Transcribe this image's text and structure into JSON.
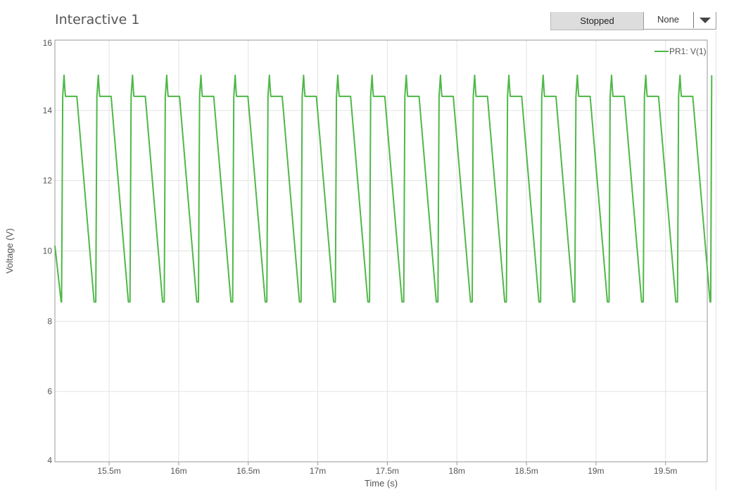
{
  "window": {
    "title": "Interactive 1"
  },
  "controls": {
    "run_state_label": "Stopped",
    "select_value": "None"
  },
  "colors": {
    "series": "#4fb848",
    "grid": "#e3e3e3",
    "axis": "#999999",
    "text": "#555555"
  },
  "chart_data": {
    "type": "line",
    "title": "",
    "xlabel": "Time (s)",
    "ylabel": "Voltage (V)",
    "xlim": [
      0.01511,
      0.0198
    ],
    "ylim": [
      4,
      16
    ],
    "grid": true,
    "legend_position": "top-right",
    "x_ticks": [
      {
        "value": 0.0155,
        "label": "15.5m"
      },
      {
        "value": 0.016,
        "label": "16m"
      },
      {
        "value": 0.0165,
        "label": "16.5m"
      },
      {
        "value": 0.017,
        "label": "17m"
      },
      {
        "value": 0.0175,
        "label": "17.5m"
      },
      {
        "value": 0.018,
        "label": "18m"
      },
      {
        "value": 0.0185,
        "label": "18.5m"
      },
      {
        "value": 0.019,
        "label": "19m"
      },
      {
        "value": 0.0195,
        "label": "19.5m"
      }
    ],
    "y_ticks": [
      {
        "value": 4,
        "label": "4"
      },
      {
        "value": 6,
        "label": "6"
      },
      {
        "value": 8,
        "label": "8"
      },
      {
        "value": 10,
        "label": "10"
      },
      {
        "value": 12,
        "label": "12"
      },
      {
        "value": 14,
        "label": "14"
      },
      {
        "value": 16,
        "label": "16"
      }
    ],
    "series": [
      {
        "name": "PR1: V(1)",
        "x": [
          0.01511,
          0.015155,
          0.015158,
          0.015166,
          0.015176,
          0.015182,
          0.015186,
          0.015196,
          0.015268,
          0.015392,
          0.015404,
          0.015412,
          0.015422,
          0.015428,
          0.015432,
          0.015442,
          0.015514,
          0.015638,
          0.01565,
          0.015658,
          0.015668,
          0.015674,
          0.015678,
          0.015688,
          0.01576,
          0.015884,
          0.015896,
          0.015904,
          0.015914,
          0.01592,
          0.015924,
          0.015934,
          0.016006,
          0.01613,
          0.016142,
          0.01615,
          0.01616,
          0.016166,
          0.01617,
          0.01618,
          0.016252,
          0.016376,
          0.016388,
          0.016396,
          0.016406,
          0.016412,
          0.016416,
          0.016426,
          0.016498,
          0.016622,
          0.016634,
          0.016642,
          0.016652,
          0.016658,
          0.016662,
          0.016672,
          0.016744,
          0.016868,
          0.01688,
          0.016888,
          0.016898,
          0.016904,
          0.016908,
          0.016918,
          0.01699,
          0.017114,
          0.017126,
          0.017134,
          0.017144,
          0.01715,
          0.017154,
          0.017164,
          0.017236,
          0.01736,
          0.017372,
          0.01738,
          0.01739,
          0.017396,
          0.0174,
          0.01741,
          0.017482,
          0.017606,
          0.017618,
          0.017626,
          0.017636,
          0.017642,
          0.017646,
          0.017656,
          0.017728,
          0.017852,
          0.017864,
          0.017872,
          0.017882,
          0.017888,
          0.017892,
          0.017902,
          0.017974,
          0.018098,
          0.01811,
          0.018118,
          0.018128,
          0.018134,
          0.018138,
          0.018148,
          0.01822,
          0.018344,
          0.018356,
          0.018364,
          0.018374,
          0.01838,
          0.018384,
          0.018394,
          0.018466,
          0.01859,
          0.018602,
          0.01861,
          0.01862,
          0.018626,
          0.01863,
          0.01864,
          0.018712,
          0.018836,
          0.018848,
          0.018856,
          0.018866,
          0.018872,
          0.018876,
          0.018886,
          0.018958,
          0.019082,
          0.019094,
          0.019102,
          0.019112,
          0.019118,
          0.019122,
          0.019132,
          0.019204,
          0.019328,
          0.01934,
          0.019348,
          0.019358,
          0.019364,
          0.019368,
          0.019378,
          0.01945,
          0.019574,
          0.019586,
          0.019594,
          0.019604,
          0.01961,
          0.019614,
          0.019624,
          0.019696,
          0.01982,
          0.019825,
          0.019832
        ],
        "y": [
          10.15,
          8.55,
          8.55,
          14.4,
          15.0,
          14.6,
          14.4,
          14.4,
          14.4,
          8.55,
          8.55,
          14.4,
          15.0,
          14.6,
          14.4,
          14.4,
          14.4,
          8.55,
          8.55,
          14.4,
          15.0,
          14.6,
          14.4,
          14.4,
          14.4,
          8.55,
          8.55,
          14.4,
          15.0,
          14.6,
          14.4,
          14.4,
          14.4,
          8.55,
          8.55,
          14.4,
          15.0,
          14.6,
          14.4,
          14.4,
          14.4,
          8.55,
          8.55,
          14.4,
          15.0,
          14.6,
          14.4,
          14.4,
          14.4,
          8.55,
          8.55,
          14.4,
          15.0,
          14.6,
          14.4,
          14.4,
          14.4,
          8.55,
          8.55,
          14.4,
          15.0,
          14.6,
          14.4,
          14.4,
          14.4,
          8.55,
          8.55,
          14.4,
          15.0,
          14.6,
          14.4,
          14.4,
          14.4,
          8.55,
          8.55,
          14.4,
          15.0,
          14.6,
          14.4,
          14.4,
          14.4,
          8.55,
          8.55,
          14.4,
          15.0,
          14.6,
          14.4,
          14.4,
          14.4,
          8.55,
          8.55,
          14.4,
          15.0,
          14.6,
          14.4,
          14.4,
          14.4,
          8.55,
          8.55,
          14.4,
          15.0,
          14.6,
          14.4,
          14.4,
          14.4,
          8.55,
          8.55,
          14.4,
          15.0,
          14.6,
          14.4,
          14.4,
          14.4,
          8.55,
          8.55,
          14.4,
          15.0,
          14.6,
          14.4,
          14.4,
          14.4,
          8.55,
          8.55,
          14.4,
          15.0,
          14.6,
          14.4,
          14.4,
          14.4,
          8.55,
          8.55,
          14.4,
          15.0,
          14.6,
          14.4,
          14.4,
          14.4,
          8.55,
          8.55,
          14.4,
          15.0,
          14.6,
          14.4,
          14.4,
          14.4,
          8.55,
          8.55,
          14.4,
          15.0,
          14.6,
          14.4,
          14.4,
          14.4,
          8.55,
          8.55,
          15.0
        ]
      }
    ]
  }
}
